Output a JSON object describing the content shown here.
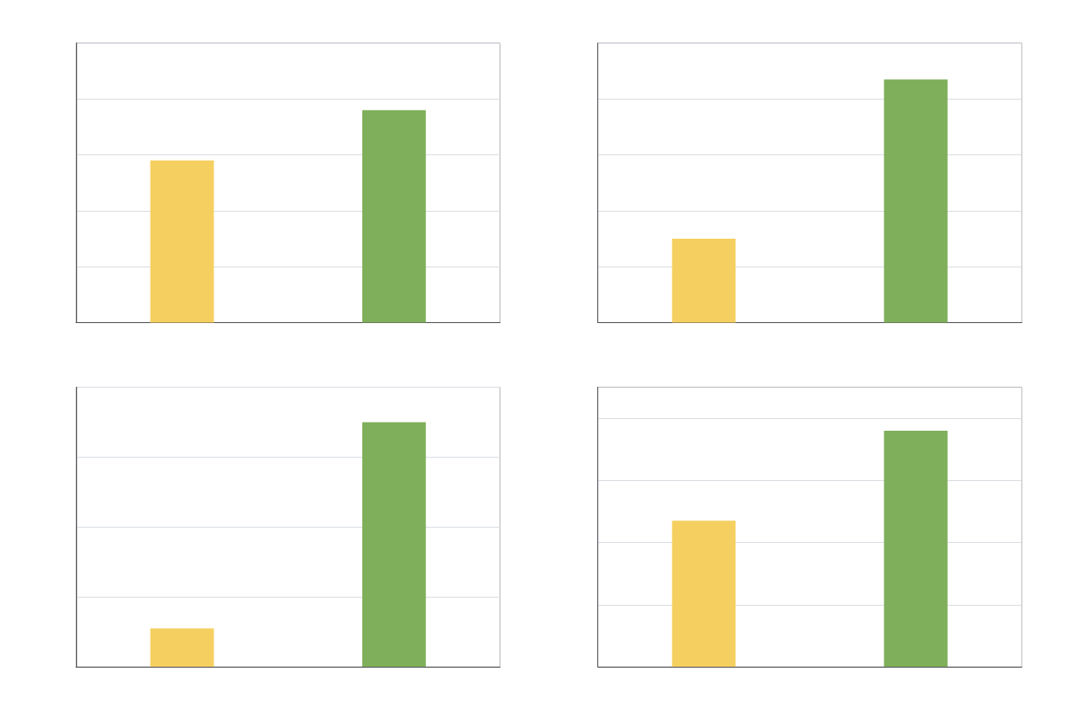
{
  "chart_data": [
    {
      "type": "bar",
      "categories": [
        null,
        null
      ],
      "values": [
        0.58,
        0.76
      ],
      "colors": [
        "#F5D060",
        "#7FAF5A"
      ],
      "ylim": [
        0,
        1.0
      ],
      "yticks": [
        0.0,
        0.2,
        0.4,
        0.6,
        0.8,
        1.0
      ],
      "grid": true,
      "tick_labels": false
    },
    {
      "type": "bar",
      "categories": [
        null,
        null
      ],
      "values": [
        0.3,
        0.87
      ],
      "colors": [
        "#F5D060",
        "#7FAF5A"
      ],
      "ylim": [
        0,
        1.0
      ],
      "yticks": [
        0.0,
        0.2,
        0.4,
        0.6,
        0.8,
        1.0
      ],
      "grid": true,
      "tick_labels": false
    },
    {
      "type": "bar",
      "categories": [
        null,
        null
      ],
      "values": [
        0.11,
        0.7
      ],
      "colors": [
        "#F5D060",
        "#7FAF5A"
      ],
      "ylim": [
        0,
        0.8
      ],
      "yticks": [
        0.0,
        0.2,
        0.4,
        0.6,
        0.8
      ],
      "grid": true,
      "tick_labels": false
    },
    {
      "type": "bar",
      "categories": [
        null,
        null
      ],
      "values": [
        0.47,
        0.76
      ],
      "colors": [
        "#F5D060",
        "#7FAF5A"
      ],
      "ylim": [
        0,
        0.9
      ],
      "yticks": [
        0.0,
        0.2,
        0.4,
        0.6,
        0.8
      ],
      "grid": true,
      "tick_labels": false
    }
  ]
}
